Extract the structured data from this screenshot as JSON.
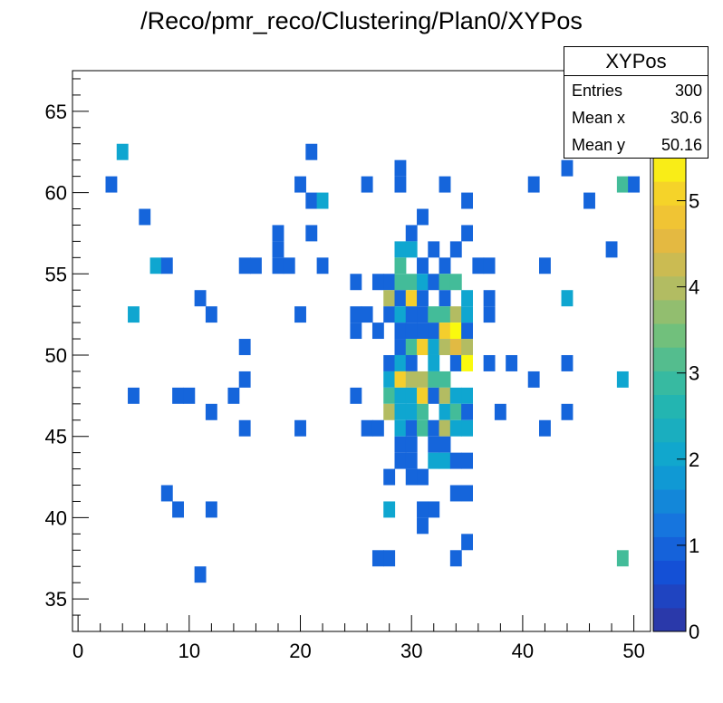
{
  "window": {
    "title": "/Reco/pmr_reco/Clustering/Plan0/XYPos"
  },
  "stats": {
    "name": "XYPos",
    "rows": [
      {
        "label": "Entries",
        "value": "300"
      },
      {
        "label": "Mean x",
        "value": "30.6"
      },
      {
        "label": "Mean y",
        "value": "50.16"
      }
    ]
  },
  "chart_data": {
    "type": "heatmap",
    "title": "/Reco/pmr_reco/Clustering/Plan0/XYPos",
    "xlabel": "",
    "ylabel": "",
    "xlim": [
      -0.5,
      51.5
    ],
    "ylim": [
      33,
      67.5
    ],
    "zlim": [
      0,
      5.5
    ],
    "xticks": [
      0,
      10,
      20,
      30,
      40,
      50
    ],
    "yticks": [
      35,
      40,
      45,
      50,
      55,
      60,
      65
    ],
    "zticks": [
      0,
      1,
      2,
      3,
      4,
      5
    ],
    "x_bin_width": 1.05,
    "y_bin_width": 1.0,
    "cells": [
      [
        4,
        62.5,
        2
      ],
      [
        21,
        62.5,
        1
      ],
      [
        29,
        61.5,
        1
      ],
      [
        44,
        61.5,
        1
      ],
      [
        3,
        60.5,
        1
      ],
      [
        20,
        60.5,
        1
      ],
      [
        26,
        60.5,
        1
      ],
      [
        29,
        60.5,
        1
      ],
      [
        33,
        60.5,
        1
      ],
      [
        41,
        60.5,
        1
      ],
      [
        49,
        60.5,
        3
      ],
      [
        50,
        60.5,
        1
      ],
      [
        21,
        59.5,
        1
      ],
      [
        22,
        59.5,
        2
      ],
      [
        35,
        59.5,
        1
      ],
      [
        46,
        59.5,
        1
      ],
      [
        6,
        58.5,
        1
      ],
      [
        31,
        58.5,
        1
      ],
      [
        18,
        57.5,
        1
      ],
      [
        21,
        57.5,
        1
      ],
      [
        30,
        57.5,
        1
      ],
      [
        35,
        57.5,
        1
      ],
      [
        18,
        56.5,
        1
      ],
      [
        29,
        56.5,
        2
      ],
      [
        30,
        56.5,
        2
      ],
      [
        32,
        56.5,
        1
      ],
      [
        34,
        56.5,
        1
      ],
      [
        48,
        56.5,
        1
      ],
      [
        7,
        55.5,
        2
      ],
      [
        8,
        55.5,
        1
      ],
      [
        15,
        55.5,
        1
      ],
      [
        16,
        55.5,
        1
      ],
      [
        18,
        55.5,
        1
      ],
      [
        19,
        55.5,
        1
      ],
      [
        22,
        55.5,
        1
      ],
      [
        29,
        55.5,
        3
      ],
      [
        31,
        55.5,
        1
      ],
      [
        33,
        55.5,
        1
      ],
      [
        36,
        55.5,
        1
      ],
      [
        37,
        55.5,
        1
      ],
      [
        42,
        55.5,
        1
      ],
      [
        25,
        54.5,
        1
      ],
      [
        27,
        54.5,
        1
      ],
      [
        28,
        54.5,
        1
      ],
      [
        29,
        54.5,
        3
      ],
      [
        30,
        54.5,
        3
      ],
      [
        31,
        54.5,
        2
      ],
      [
        32,
        54.5,
        1
      ],
      [
        33,
        54.5,
        3
      ],
      [
        34,
        54.5,
        3
      ],
      [
        11,
        53.5,
        1
      ],
      [
        28,
        53.5,
        4
      ],
      [
        29,
        53.5,
        1
      ],
      [
        30,
        53.5,
        5
      ],
      [
        31,
        53.5,
        1
      ],
      [
        33,
        53.5,
        1
      ],
      [
        35,
        53.5,
        2
      ],
      [
        37,
        53.5,
        1
      ],
      [
        44,
        53.5,
        2
      ],
      [
        5,
        52.5,
        2
      ],
      [
        12,
        52.5,
        1
      ],
      [
        20,
        52.5,
        1
      ],
      [
        25,
        52.5,
        1
      ],
      [
        26,
        52.5,
        1
      ],
      [
        28,
        52.5,
        1
      ],
      [
        29,
        52.5,
        2
      ],
      [
        30,
        52.5,
        1
      ],
      [
        31,
        52.5,
        1
      ],
      [
        32,
        52.5,
        3
      ],
      [
        33,
        52.5,
        3
      ],
      [
        34,
        52.5,
        4
      ],
      [
        35,
        52.5,
        2
      ],
      [
        37,
        52.5,
        1
      ],
      [
        25,
        51.5,
        1
      ],
      [
        27,
        51.5,
        1
      ],
      [
        29,
        51.5,
        1
      ],
      [
        30,
        51.5,
        1
      ],
      [
        31,
        51.5,
        1
      ],
      [
        32,
        51.5,
        1
      ],
      [
        33,
        51.5,
        5
      ],
      [
        34,
        51.5,
        5.5
      ],
      [
        35,
        51.5,
        1
      ],
      [
        15,
        50.5,
        1
      ],
      [
        29,
        50.5,
        1
      ],
      [
        30,
        50.5,
        3
      ],
      [
        31,
        50.5,
        5
      ],
      [
        32,
        50.5,
        2
      ],
      [
        33,
        50.5,
        4
      ],
      [
        34,
        50.5,
        4.5
      ],
      [
        35,
        50.5,
        4
      ],
      [
        28,
        49.5,
        1
      ],
      [
        29,
        49.5,
        2
      ],
      [
        30,
        49.5,
        1
      ],
      [
        32,
        49.5,
        2
      ],
      [
        34,
        49.5,
        1
      ],
      [
        35,
        49.5,
        5.5
      ],
      [
        37,
        49.5,
        1
      ],
      [
        39,
        49.5,
        1
      ],
      [
        44,
        49.5,
        1
      ],
      [
        15,
        48.5,
        1
      ],
      [
        28,
        48.5,
        2
      ],
      [
        29,
        48.5,
        5
      ],
      [
        30,
        48.5,
        4
      ],
      [
        31,
        48.5,
        4
      ],
      [
        32,
        48.5,
        3
      ],
      [
        33,
        48.5,
        3
      ],
      [
        41,
        48.5,
        1
      ],
      [
        49,
        48.5,
        2
      ],
      [
        5,
        47.5,
        1
      ],
      [
        9,
        47.5,
        1
      ],
      [
        10,
        47.5,
        1
      ],
      [
        14,
        47.5,
        1
      ],
      [
        25,
        47.5,
        1
      ],
      [
        28,
        47.5,
        3
      ],
      [
        29,
        47.5,
        2
      ],
      [
        30,
        47.5,
        2
      ],
      [
        31,
        47.5,
        5
      ],
      [
        32,
        47.5,
        1
      ],
      [
        33,
        47.5,
        4
      ],
      [
        34,
        47.5,
        2
      ],
      [
        35,
        47.5,
        2
      ],
      [
        12,
        46.5,
        1
      ],
      [
        28,
        46.5,
        4
      ],
      [
        29,
        46.5,
        2
      ],
      [
        30,
        46.5,
        2
      ],
      [
        31,
        46.5,
        3
      ],
      [
        33,
        46.5,
        2
      ],
      [
        34,
        46.5,
        3
      ],
      [
        35,
        46.5,
        1
      ],
      [
        38,
        46.5,
        1
      ],
      [
        44,
        46.5,
        1
      ],
      [
        15,
        45.5,
        1
      ],
      [
        20,
        45.5,
        1
      ],
      [
        26,
        45.5,
        1
      ],
      [
        27,
        45.5,
        1
      ],
      [
        29,
        45.5,
        2
      ],
      [
        30,
        45.5,
        1
      ],
      [
        31,
        45.5,
        3
      ],
      [
        32,
        45.5,
        1
      ],
      [
        33,
        45.5,
        4
      ],
      [
        34,
        45.5,
        2
      ],
      [
        35,
        45.5,
        2
      ],
      [
        42,
        45.5,
        1
      ],
      [
        29,
        44.5,
        1
      ],
      [
        30,
        44.5,
        1
      ],
      [
        32,
        44.5,
        1
      ],
      [
        33,
        44.5,
        1
      ],
      [
        29,
        43.5,
        1
      ],
      [
        30,
        43.5,
        1
      ],
      [
        32,
        43.5,
        2
      ],
      [
        33,
        43.5,
        2
      ],
      [
        34,
        43.5,
        1
      ],
      [
        35,
        43.5,
        1
      ],
      [
        28,
        42.5,
        1
      ],
      [
        30,
        42.5,
        1
      ],
      [
        31,
        42.5,
        1
      ],
      [
        8,
        41.5,
        1
      ],
      [
        34,
        41.5,
        1
      ],
      [
        35,
        41.5,
        1
      ],
      [
        9,
        40.5,
        1
      ],
      [
        12,
        40.5,
        1
      ],
      [
        28,
        40.5,
        2
      ],
      [
        31,
        40.5,
        1
      ],
      [
        32,
        40.5,
        1
      ],
      [
        31,
        39.5,
        1
      ],
      [
        35,
        38.5,
        1
      ],
      [
        27,
        37.5,
        1
      ],
      [
        28,
        37.5,
        1
      ],
      [
        34,
        37.5,
        1
      ],
      [
        49,
        37.5,
        3
      ],
      [
        11,
        36.5,
        1
      ]
    ]
  }
}
